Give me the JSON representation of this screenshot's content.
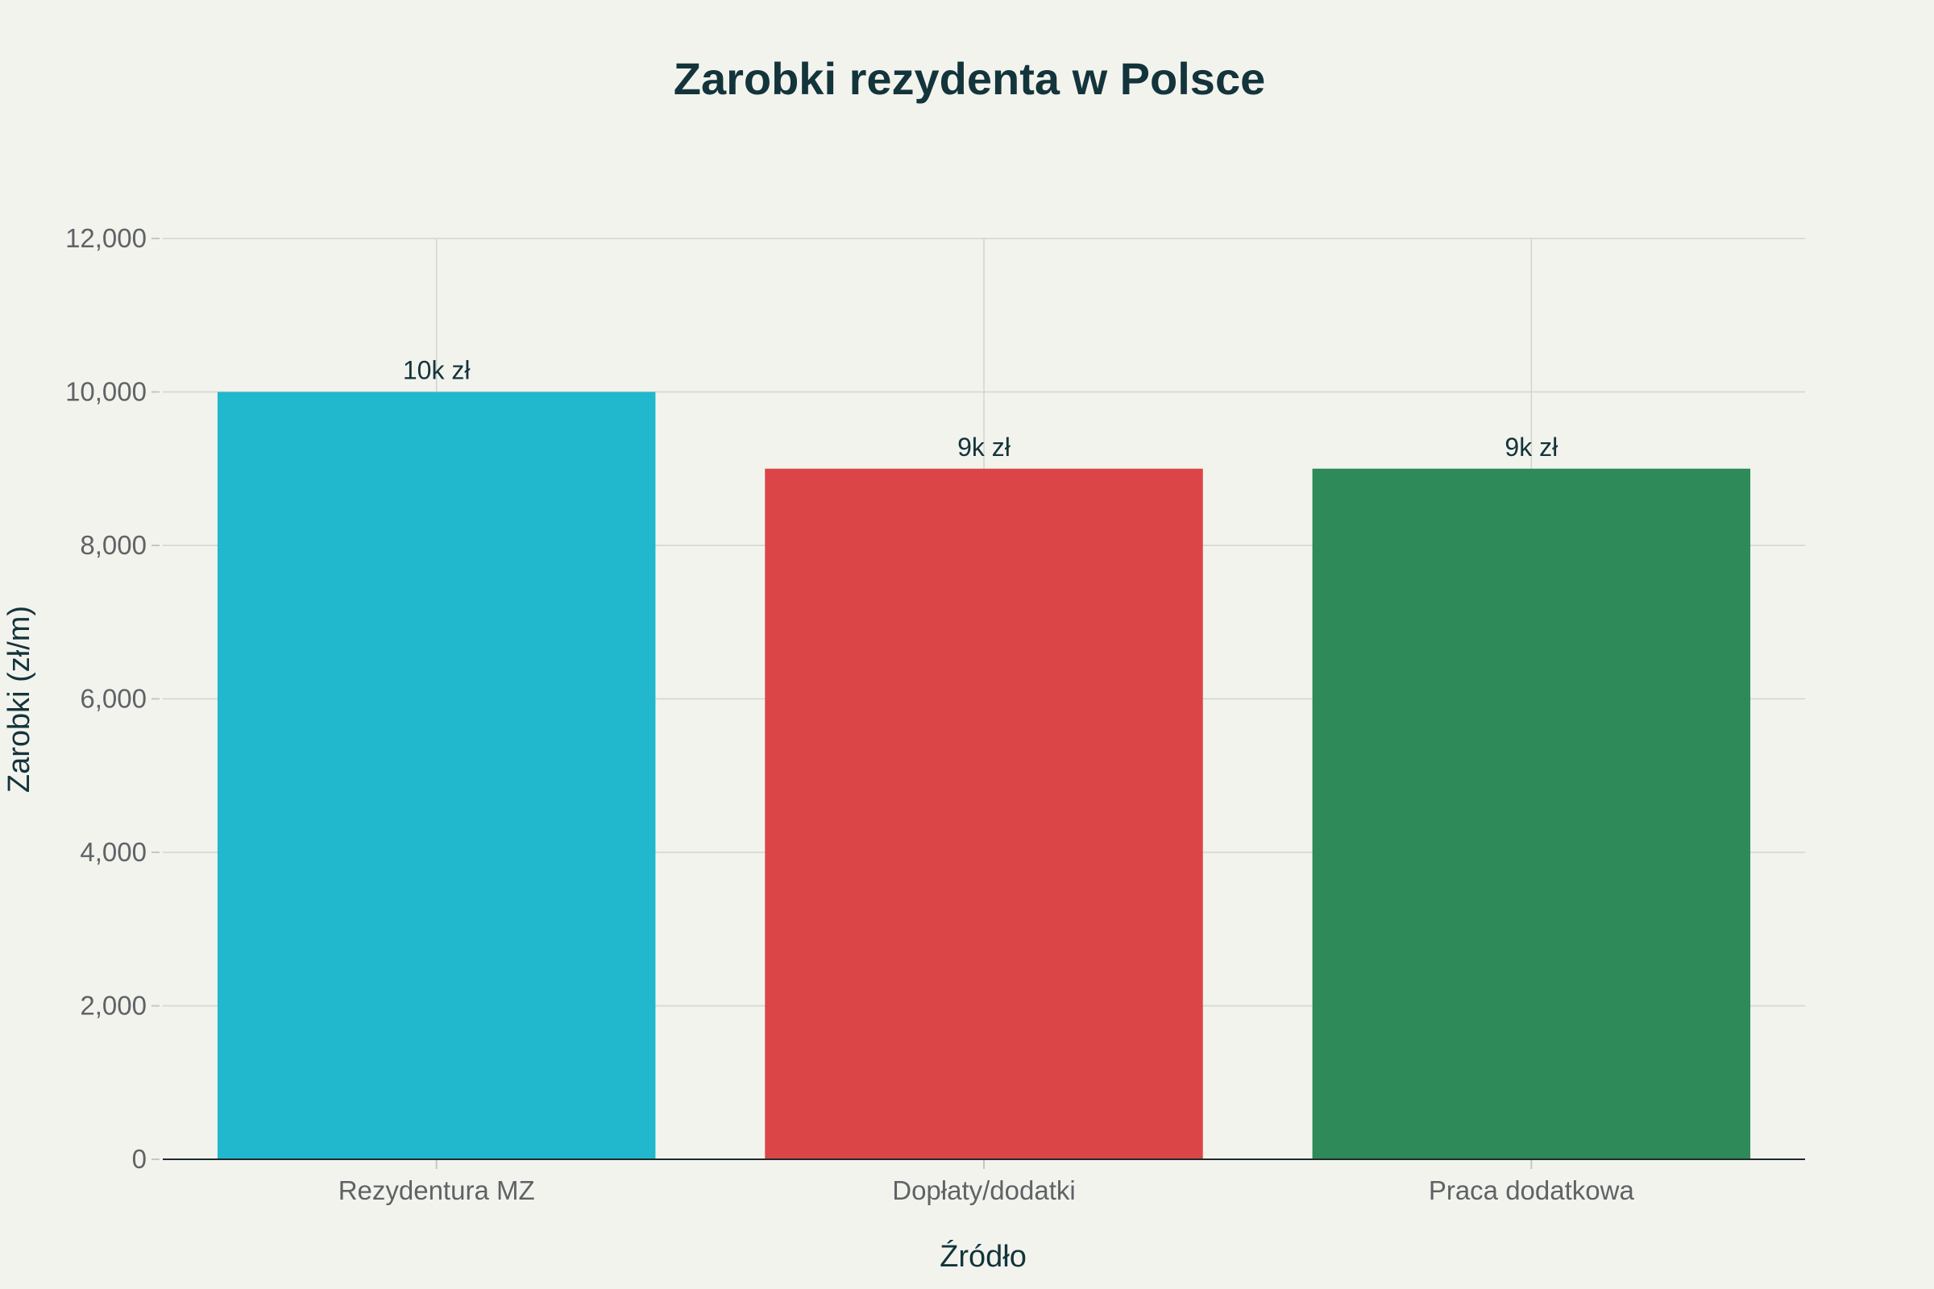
{
  "chart_data": {
    "type": "bar",
    "title": "Zarobki rezydenta w Polsce",
    "xlabel": "Źródło",
    "ylabel": "Zarobki (zł/m)",
    "categories": [
      "Rezydentura MZ",
      "Dopłaty/dodatki",
      "Praca dodatkowa"
    ],
    "values": [
      10000,
      9000,
      9000
    ],
    "data_labels": [
      "10k zł",
      "9k zł",
      "9k zł"
    ],
    "colors": [
      "#21b8cd",
      "#db4547",
      "#2e8a59"
    ],
    "ylim": [
      0,
      12000
    ],
    "yticks": [
      0,
      2000,
      4000,
      6000,
      8000,
      10000,
      12000
    ],
    "ytick_labels": [
      "0",
      "2,000",
      "4,000",
      "6,000",
      "8,000",
      "10,000",
      "12,000"
    ],
    "grid": true,
    "legend": "none"
  }
}
